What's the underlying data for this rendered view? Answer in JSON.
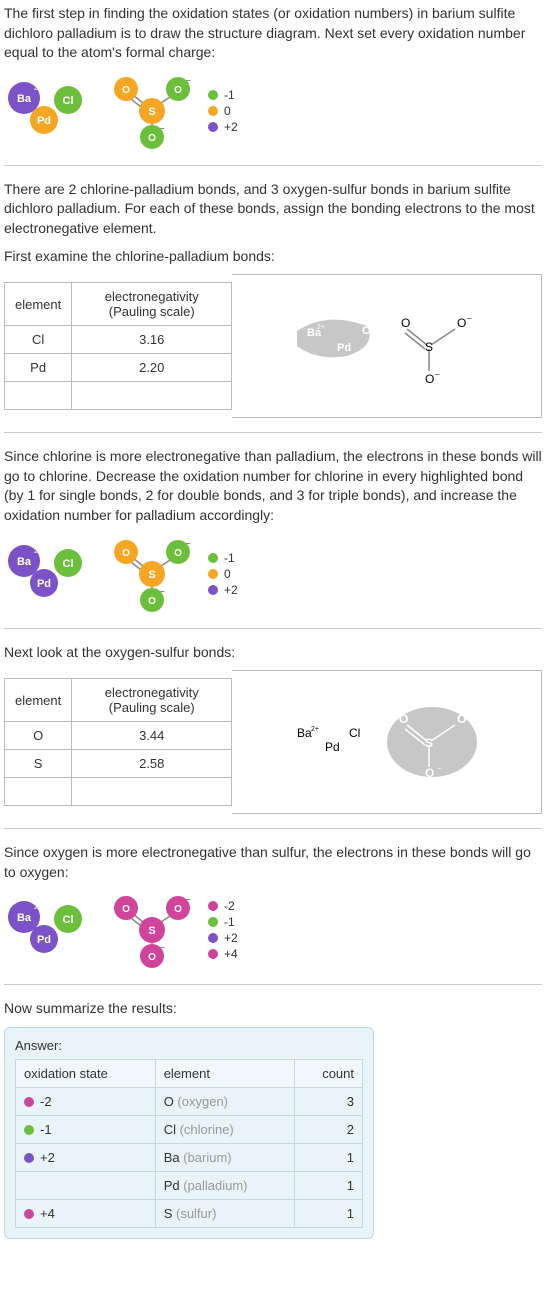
{
  "intro": "The first step in finding the oxidation states (or oxidation numbers) in barium sulfite dichloro palladium is to draw the structure diagram. Next set every oxidation number equal to the atom's formal charge:",
  "legend1": {
    "a": "-1",
    "b": "0",
    "c": "+2"
  },
  "colors": {
    "green": "#6bbf3a",
    "orange": "#f5a623",
    "purple": "#7b52c7",
    "pink": "#d0459b",
    "grey": "#999999"
  },
  "atoms": {
    "Ba": "Ba",
    "Ba_charge": "2+",
    "Pd": "Pd",
    "Cl": "Cl",
    "O": "O",
    "S": "S",
    "O_minus": "O",
    "minus": "−"
  },
  "para2": "There are 2 chlorine-palladium bonds, and 3 oxygen-sulfur bonds in barium sulfite dichloro palladium.  For each of these bonds, assign the bonding electrons to the most electronegative element.",
  "para3": "First examine the chlorine-palladium bonds:",
  "en_table1": {
    "h_element": "element",
    "h_en": "electronegativity (Pauling scale)",
    "r1e": "Cl",
    "r1v": "3.16",
    "r2e": "Pd",
    "r2v": "2.20"
  },
  "para4": "Since chlorine is more electronegative than palladium, the electrons in these bonds will go to chlorine. Decrease the oxidation number for chlorine in every highlighted bond (by 1 for single bonds, 2 for double bonds, and 3 for triple bonds), and increase the oxidation number for palladium accordingly:",
  "para5": "Next look at the oxygen-sulfur bonds:",
  "en_table2": {
    "h_element": "element",
    "h_en": "electronegativity (Pauling scale)",
    "r1e": "O",
    "r1v": "3.44",
    "r2e": "S",
    "r2v": "2.58"
  },
  "para6": "Since oxygen is more electronegative than sulfur, the electrons in these bonds will go to oxygen:",
  "legend2": {
    "a": "-2",
    "b": "-1",
    "c": "+2",
    "d": "+4"
  },
  "para7": "Now summarize the results:",
  "answer": {
    "label": "Answer:",
    "h_ox": "oxidation state",
    "h_el": "element",
    "h_ct": "count",
    "rows": [
      {
        "color": "#d0459b",
        "ox": "-2",
        "el": "O",
        "el_full": "(oxygen)",
        "ct": "3"
      },
      {
        "color": "#6bbf3a",
        "ox": "-1",
        "el": "Cl",
        "el_full": "(chlorine)",
        "ct": "2"
      },
      {
        "color": "#7b52c7",
        "ox": "+2",
        "el": "Ba",
        "el_full": "(barium)",
        "ct": "1"
      },
      {
        "color": "#7b52c7",
        "ox": "",
        "el": "Pd",
        "el_full": "(palladium)",
        "ct": "1"
      },
      {
        "color": "#d0459b",
        "ox": "+4",
        "el": "S",
        "el_full": "(sulfur)",
        "ct": "1"
      }
    ]
  }
}
